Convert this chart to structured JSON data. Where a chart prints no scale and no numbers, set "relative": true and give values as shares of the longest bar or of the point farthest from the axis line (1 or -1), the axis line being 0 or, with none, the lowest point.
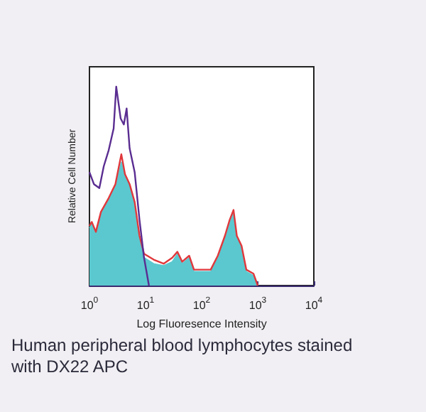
{
  "chart_data": {
    "type": "line",
    "relative": true,
    "log": "x",
    "xlabel": "Log Fluoresence Intensity",
    "ylabel": "Relative Cell Number",
    "xlim": [
      1,
      10000
    ],
    "xticks": [
      {
        "value": 1,
        "label": "10$^{0}$"
      },
      {
        "value": 10,
        "label": "10$^{1}$"
      },
      {
        "value": 100,
        "label": "10$^{2}$"
      },
      {
        "value": 1000,
        "label": "10$^{3}$"
      },
      {
        "value": 10000,
        "label": "10$^{4}$"
      }
    ],
    "grid": false,
    "marker": "none",
    "line_style": "solid",
    "annotations": [
      "Human peripheral blood lymphocytes stained with DX22 APC"
    ],
    "series": [
      {
        "type": "area",
        "color": "#5bc8cf",
        "x": [
          1,
          1.1,
          1.3,
          1.6,
          2.2,
          2.9,
          3.7,
          4.3,
          5.2,
          6.4,
          7.8,
          9.4,
          14,
          21,
          30,
          37,
          45,
          60,
          73,
          98,
          145,
          194,
          260,
          316,
          370,
          424,
          515,
          626,
          839,
          1000
        ],
        "values": [
          0.29,
          0.31,
          0.26,
          0.36,
          0.43,
          0.5,
          0.62,
          0.55,
          0.5,
          0.41,
          0.24,
          0.14,
          0.11,
          0.1,
          0.12,
          0.16,
          0.11,
          0.14,
          0.07,
          0.07,
          0.07,
          0.14,
          0.24,
          0.31,
          0.37,
          0.24,
          0.19,
          0.07,
          0.05,
          0
        ]
      },
      {
        "color": "#e0383c",
        "x": [
          1,
          1.1,
          1.3,
          1.6,
          2.2,
          2.9,
          3.7,
          4.3,
          5.2,
          6.4,
          7.8,
          9.4,
          14,
          21,
          30,
          37,
          45,
          60,
          73,
          98,
          145,
          194,
          260,
          316,
          370,
          424,
          515,
          626,
          839,
          1000
        ],
        "values": [
          0.3,
          0.32,
          0.27,
          0.37,
          0.44,
          0.51,
          0.66,
          0.56,
          0.51,
          0.42,
          0.25,
          0.16,
          0.13,
          0.11,
          0.14,
          0.17,
          0.12,
          0.15,
          0.08,
          0.08,
          0.08,
          0.15,
          0.25,
          0.33,
          0.38,
          0.25,
          0.2,
          0.08,
          0.06,
          0
        ]
      },
      {
        "color": "#5a2d91",
        "x": [
          1,
          1.2,
          1.5,
          1.8,
          2.2,
          2.7,
          3.0,
          3.6,
          4.1,
          4.6,
          5.2,
          6.4,
          7.8,
          9.4,
          11.5
        ],
        "values": [
          0.57,
          0.51,
          0.49,
          0.6,
          0.68,
          0.79,
          1,
          0.84,
          0.81,
          0.89,
          0.69,
          0.57,
          0.33,
          0.14,
          0
        ]
      }
    ]
  }
}
